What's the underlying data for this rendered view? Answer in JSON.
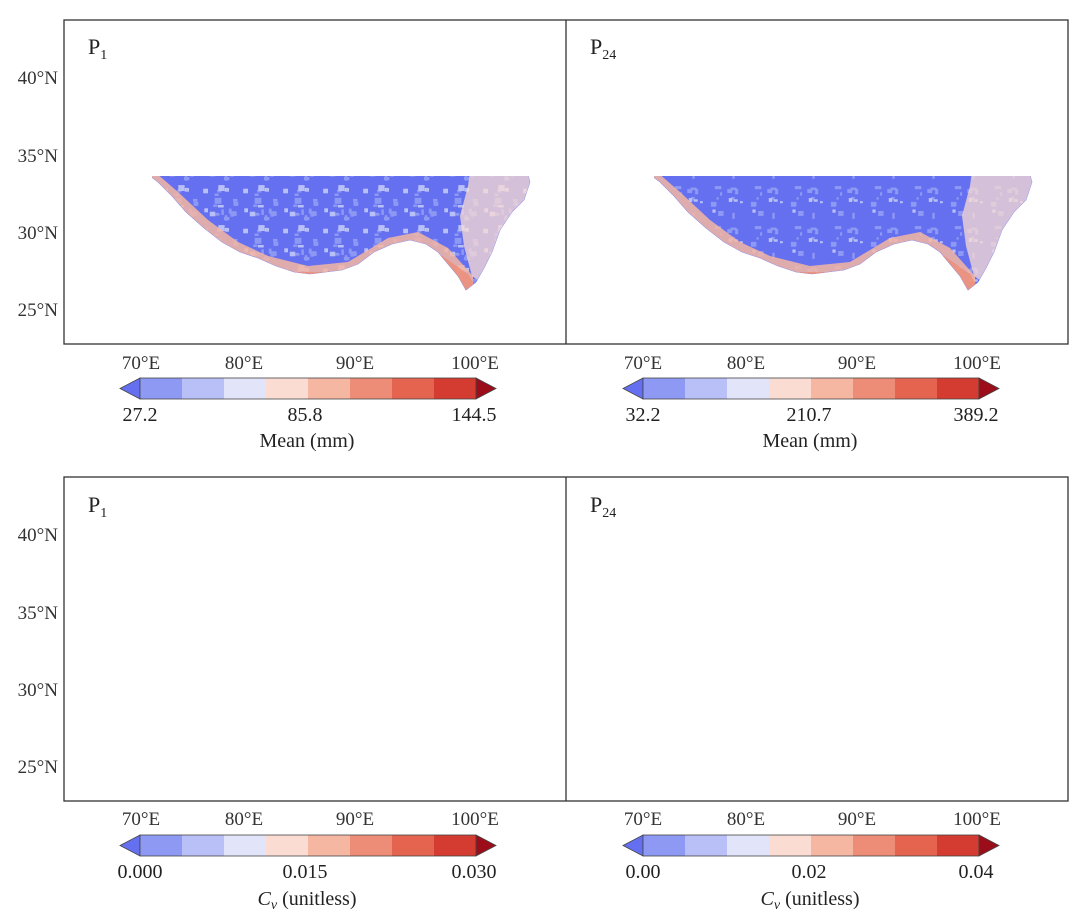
{
  "colors": [
    "#6470f0",
    "#8e99f4",
    "#b9bff7",
    "#e2e4fa",
    "#fadcd2",
    "#f5b6a2",
    "#ee8d77",
    "#e5644f",
    "#d43b31",
    "#9c0d1a"
  ],
  "axes": {
    "lat_ticks": [
      "40°N",
      "35°N",
      "30°N",
      "25°N"
    ],
    "lon_ticks": [
      "70°E",
      "80°E",
      "90°E",
      "100°E"
    ]
  },
  "panels": [
    {
      "id": "mean-p1",
      "label_main": "P",
      "label_sub": "1",
      "palette": "mean-p1"
    },
    {
      "id": "mean-p24",
      "label_main": "P",
      "label_sub": "24",
      "palette": "mean-p24"
    },
    {
      "id": "cv-p1",
      "label_main": "P",
      "label_sub": "1",
      "palette": "cv-p1"
    },
    {
      "id": "cv-p24",
      "label_main": "P",
      "label_sub": "24",
      "palette": "cv-p24"
    }
  ],
  "colorbars": [
    {
      "id": "cb-mean-p1",
      "ticks": [
        "27.2",
        "85.8",
        "144.5"
      ],
      "title": "Mean (mm)"
    },
    {
      "id": "cb-mean-p24",
      "ticks": [
        "32.2",
        "210.7",
        "389.2"
      ],
      "title": "Mean (mm)"
    },
    {
      "id": "cb-cv-p1",
      "ticks": [
        "0.000",
        "0.015",
        "0.030"
      ],
      "title_var": "C",
      "title_sub": "v",
      "title_rest": " (unitless)"
    },
    {
      "id": "cb-cv-p24",
      "ticks": [
        "0.00",
        "0.02",
        "0.04"
      ],
      "title_var": "C",
      "title_sub": "v",
      "title_rest": " (unitless)"
    }
  ]
}
